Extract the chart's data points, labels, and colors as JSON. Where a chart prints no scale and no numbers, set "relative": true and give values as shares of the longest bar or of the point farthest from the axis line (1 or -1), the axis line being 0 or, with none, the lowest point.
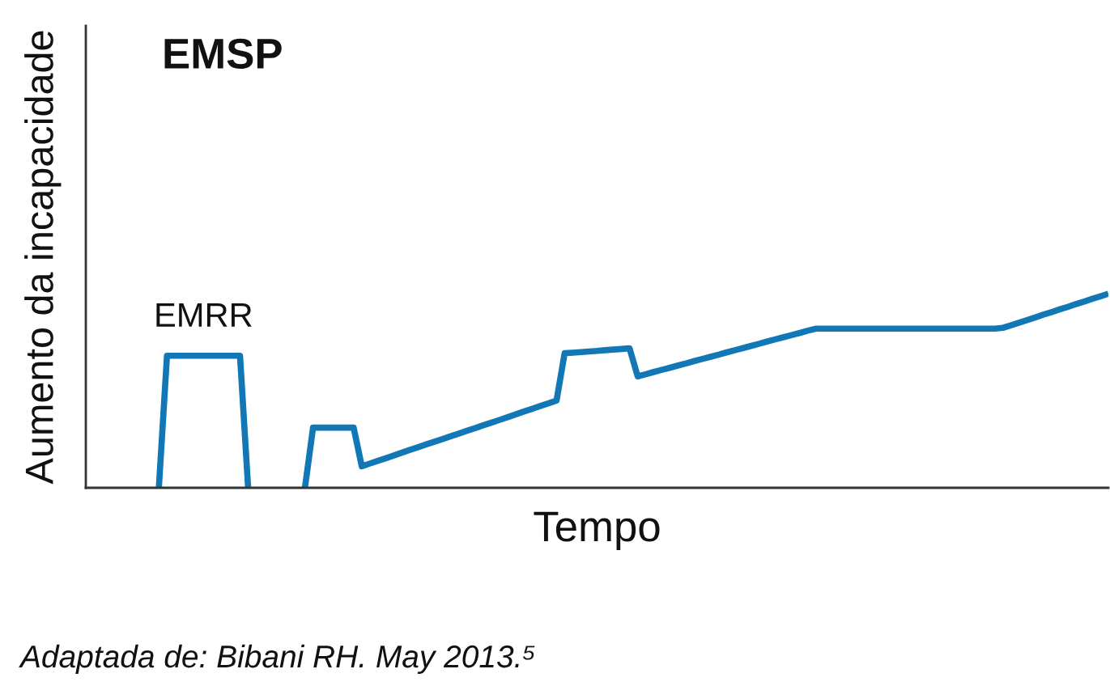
{
  "chart_data": {
    "type": "line",
    "title": "EMSP",
    "xlabel": "Tempo",
    "ylabel": "Aumento da incapacidade",
    "relative": true,
    "tick_labels": false,
    "categories": [
      null,
      null,
      null,
      null,
      null,
      null,
      null,
      null,
      null,
      null,
      null,
      null,
      null,
      null,
      null,
      null,
      null,
      null,
      null,
      null,
      null,
      null,
      null,
      null,
      null,
      null,
      null,
      null,
      null,
      null,
      null,
      null,
      null,
      null,
      null,
      null,
      null,
      null,
      null,
      null,
      null,
      null,
      null,
      null,
      null,
      null,
      null,
      null,
      null,
      null,
      null,
      null,
      null,
      null,
      null,
      null,
      null,
      null,
      null,
      null,
      null,
      null,
      null,
      null,
      null,
      null,
      null,
      null,
      null,
      null,
      null,
      null,
      null,
      null,
      null,
      null,
      null,
      null,
      null,
      null,
      null,
      null,
      null,
      null,
      null,
      null,
      null,
      null,
      null,
      null,
      null,
      null,
      null,
      null,
      null,
      null,
      null,
      null,
      null,
      null,
      null,
      null,
      null,
      null,
      null,
      null,
      null,
      null,
      null,
      null,
      null,
      null,
      null,
      null,
      null,
      null,
      null,
      null,
      null,
      null,
      null,
      null,
      null,
      null,
      null,
      null,
      null
    ],
    "series": [
      {
        "name": "EMRR",
        "color": "#1177b5",
        "values": [
          null,
          null,
          null,
          null,
          null,
          null,
          null,
          null,
          null,
          0,
          0.68,
          0.68,
          0.68,
          0.68,
          0.68,
          0.68,
          0.68,
          0.68,
          0.68,
          0.68,
          0,
          null,
          null,
          null,
          null,
          null,
          null,
          null,
          null,
          null,
          null,
          null,
          null,
          null,
          null,
          null,
          null,
          null,
          null,
          null,
          null,
          null,
          null,
          null,
          null,
          null,
          null,
          null,
          null,
          null,
          null,
          null,
          null,
          null,
          null,
          null,
          null,
          null,
          null,
          null,
          null,
          null,
          null,
          null,
          null,
          null,
          null,
          null,
          null,
          null,
          null,
          null,
          null,
          null,
          null,
          null,
          null,
          null,
          null,
          null,
          null,
          null,
          null,
          null,
          null,
          null,
          null,
          null,
          null,
          null,
          null,
          null,
          null,
          null,
          null,
          null,
          null,
          null,
          null,
          null,
          null,
          null,
          null,
          null,
          null,
          null,
          null,
          null,
          null,
          null,
          null,
          null,
          null,
          null,
          null,
          null,
          null,
          null,
          null,
          null,
          null,
          null,
          null,
          null,
          null,
          null,
          null
        ]
      },
      {
        "color": "#1177b5",
        "values": [
          null,
          null,
          null,
          null,
          null,
          null,
          null,
          null,
          null,
          null,
          null,
          null,
          null,
          null,
          null,
          null,
          null,
          null,
          null,
          null,
          null,
          null,
          null,
          null,
          null,
          null,
          null,
          0,
          0.31,
          0.31,
          0.31,
          0.31,
          0.31,
          0.31,
          0.111,
          0.125,
          0.139,
          0.153,
          0.167,
          0.182,
          0.196,
          0.21,
          0.224,
          0.238,
          0.252,
          0.266,
          0.28,
          0.294,
          0.308,
          0.322,
          0.336,
          0.35,
          0.364,
          0.379,
          0.393,
          0.407,
          0.421,
          0.435,
          0.449,
          0.693,
          0.696,
          0.699,
          0.702,
          0.705,
          0.709,
          0.712,
          0.715,
          0.718,
          0.574,
          0.585,
          0.597,
          0.608,
          0.619,
          0.63,
          0.641,
          0.653,
          0.664,
          0.675,
          0.686,
          0.698,
          0.709,
          0.72,
          0.731,
          0.742,
          0.754,
          0.765,
          0.776,
          0.787,
          0.798,
          0.81,
          0.82,
          0.82,
          0.82,
          0.82,
          0.82,
          0.82,
          0.82,
          0.82,
          0.82,
          0.82,
          0.82,
          0.82,
          0.82,
          0.82,
          0.82,
          0.82,
          0.82,
          0.82,
          0.82,
          0.82,
          0.82,
          0.82,
          0.82,
          0.824,
          0.837,
          0.851,
          0.864,
          0.878,
          0.892,
          0.905,
          0.919,
          0.932,
          0.946,
          0.959,
          0.973,
          0.986,
          1.0
        ]
      }
    ],
    "annotations": [
      "Adaptada de: Bibani RH. May 2013.⁵"
    ]
  }
}
